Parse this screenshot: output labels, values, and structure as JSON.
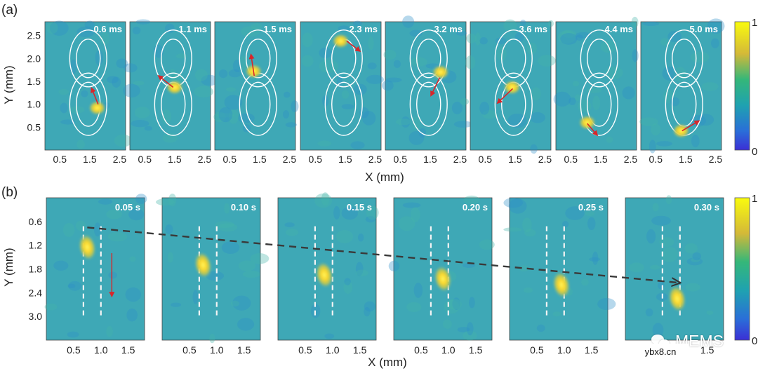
{
  "figure": {
    "panel_a_label": "(a)",
    "panel_b_label": "(b)",
    "panel_a_xlabel": "X (mm)",
    "panel_a_ylabel": "Y (mm)",
    "panel_b_xlabel": "X (mm)",
    "panel_b_ylabel": "Y (mm)",
    "colorbar_ticks": [
      "1",
      "0"
    ]
  },
  "chart_data": [
    {
      "type": "heatmap",
      "title": "(a)",
      "xlabel": "X (mm)",
      "ylabel": "Y (mm)",
      "xlim": [
        0,
        2.7
      ],
      "ylim": [
        0,
        2.8
      ],
      "xticks": [
        "0.5",
        "1.5",
        "2.5"
      ],
      "yticks": [
        "0.5",
        "1.0",
        "1.5",
        "2.0",
        "2.5"
      ],
      "timestamps": [
        "0.6 ms",
        "1.1 ms",
        "1.5 ms",
        "2.3 ms",
        "3.2 ms",
        "3.6 ms",
        "4.4 ms",
        "5.0 ms"
      ],
      "spot_positions_mm": [
        {
          "x": 1.75,
          "y": 0.92
        },
        {
          "x": 1.5,
          "y": 1.37
        },
        {
          "x": 1.3,
          "y": 1.72
        },
        {
          "x": 1.35,
          "y": 2.38
        },
        {
          "x": 1.85,
          "y": 1.7
        },
        {
          "x": 1.4,
          "y": 1.37
        },
        {
          "x": 1.05,
          "y": 0.6
        },
        {
          "x": 1.35,
          "y": 0.42
        }
      ],
      "colorbar": {
        "min": 0,
        "max": 1
      }
    },
    {
      "type": "heatmap",
      "title": "(b)",
      "xlabel": "X (mm)",
      "ylabel": "Y (mm)",
      "xlim": [
        0,
        1.8
      ],
      "ylim": [
        3.6,
        0
      ],
      "xticks": [
        "0.5",
        "1.0",
        "1.5"
      ],
      "yticks": [
        "0.6",
        "1.2",
        "1.8",
        "2.4",
        "3.0"
      ],
      "timestamps": [
        "0.05 s",
        "0.10 s",
        "0.15 s",
        "0.20 s",
        "0.25 s",
        "0.30 s"
      ],
      "spot_positions_mm": [
        {
          "x": 0.75,
          "y": 1.25
        },
        {
          "x": 0.75,
          "y": 1.7
        },
        {
          "x": 0.85,
          "y": 1.95
        },
        {
          "x": 0.9,
          "y": 2.05
        },
        {
          "x": 0.95,
          "y": 2.2
        },
        {
          "x": 0.95,
          "y": 2.55
        }
      ],
      "colorbar": {
        "min": 0,
        "max": 1
      }
    }
  ],
  "watermark": {
    "text": "MEMS",
    "site": "ybx8.cn"
  }
}
